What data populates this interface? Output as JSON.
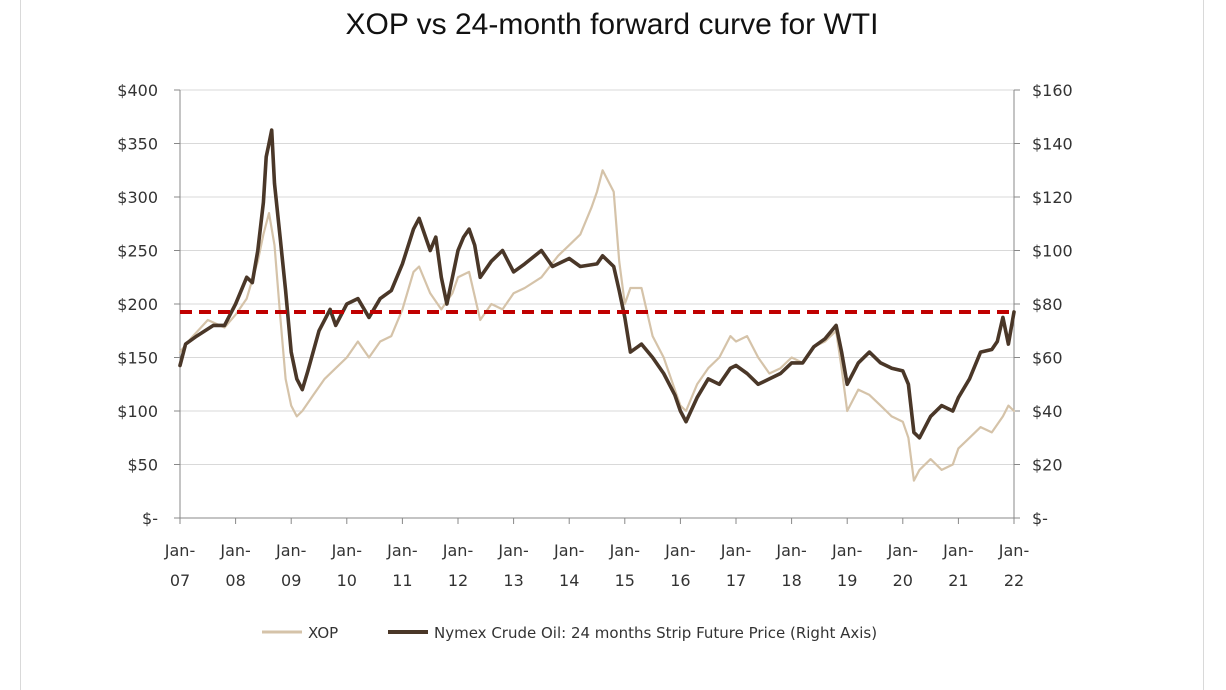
{
  "chart_data": {
    "type": "line",
    "title": "XOP vs 24-month forward curve for WTI",
    "x_ticks": [
      "Jan-07",
      "Jan-08",
      "Jan-09",
      "Jan-10",
      "Jan-11",
      "Jan-12",
      "Jan-13",
      "Jan-14",
      "Jan-15",
      "Jan-16",
      "Jan-17",
      "Jan-18",
      "Jan-19",
      "Jan-20",
      "Jan-21",
      "Jan-22"
    ],
    "x_ticks_lines": [
      [
        "Jan-",
        "07"
      ],
      [
        "Jan-",
        "08"
      ],
      [
        "Jan-",
        "09"
      ],
      [
        "Jan-",
        "10"
      ],
      [
        "Jan-",
        "11"
      ],
      [
        "Jan-",
        "12"
      ],
      [
        "Jan-",
        "13"
      ],
      [
        "Jan-",
        "14"
      ],
      [
        "Jan-",
        "15"
      ],
      [
        "Jan-",
        "16"
      ],
      [
        "Jan-",
        "17"
      ],
      [
        "Jan-",
        "18"
      ],
      [
        "Jan-",
        "19"
      ],
      [
        "Jan-",
        "20"
      ],
      [
        "Jan-",
        "21"
      ],
      [
        "Jan-",
        "22"
      ]
    ],
    "y_left": {
      "ticks": [
        "$-",
        "$50",
        "$100",
        "$150",
        "$200",
        "$250",
        "$300",
        "$350",
        "$400"
      ],
      "lim": [
        0,
        400
      ]
    },
    "y_right": {
      "ticks": [
        "$-",
        "$20",
        "$40",
        "$60",
        "$80",
        "$100",
        "$120",
        "$140",
        "$160"
      ],
      "lim": [
        0,
        160
      ]
    },
    "reference_line": {
      "axis": "right",
      "value": 77,
      "color": "#c00000",
      "style": "dashed"
    },
    "legend_position": "bottom",
    "series": [
      {
        "name": "XOP",
        "axis": "left",
        "color": "#d5c3a9",
        "points": [
          [
            2007.0,
            155
          ],
          [
            2007.2,
            168
          ],
          [
            2007.5,
            185
          ],
          [
            2007.8,
            178
          ],
          [
            2008.0,
            190
          ],
          [
            2008.2,
            205
          ],
          [
            2008.4,
            240
          ],
          [
            2008.5,
            265
          ],
          [
            2008.6,
            285
          ],
          [
            2008.7,
            255
          ],
          [
            2008.8,
            190
          ],
          [
            2008.9,
            130
          ],
          [
            2009.0,
            105
          ],
          [
            2009.1,
            95
          ],
          [
            2009.2,
            100
          ],
          [
            2009.4,
            115
          ],
          [
            2009.6,
            130
          ],
          [
            2009.8,
            140
          ],
          [
            2010.0,
            150
          ],
          [
            2010.2,
            165
          ],
          [
            2010.4,
            150
          ],
          [
            2010.6,
            165
          ],
          [
            2010.8,
            170
          ],
          [
            2011.0,
            195
          ],
          [
            2011.2,
            230
          ],
          [
            2011.3,
            235
          ],
          [
            2011.5,
            210
          ],
          [
            2011.7,
            195
          ],
          [
            2011.9,
            210
          ],
          [
            2012.0,
            225
          ],
          [
            2012.2,
            230
          ],
          [
            2012.4,
            185
          ],
          [
            2012.6,
            200
          ],
          [
            2012.8,
            195
          ],
          [
            2013.0,
            210
          ],
          [
            2013.2,
            215
          ],
          [
            2013.5,
            225
          ],
          [
            2013.8,
            245
          ],
          [
            2014.0,
            255
          ],
          [
            2014.2,
            265
          ],
          [
            2014.4,
            290
          ],
          [
            2014.5,
            305
          ],
          [
            2014.6,
            325
          ],
          [
            2014.7,
            315
          ],
          [
            2014.8,
            305
          ],
          [
            2014.9,
            240
          ],
          [
            2015.0,
            200
          ],
          [
            2015.1,
            215
          ],
          [
            2015.3,
            215
          ],
          [
            2015.5,
            170
          ],
          [
            2015.7,
            150
          ],
          [
            2015.9,
            120
          ],
          [
            2016.0,
            105
          ],
          [
            2016.1,
            100
          ],
          [
            2016.3,
            125
          ],
          [
            2016.5,
            140
          ],
          [
            2016.7,
            150
          ],
          [
            2016.9,
            170
          ],
          [
            2017.0,
            165
          ],
          [
            2017.2,
            170
          ],
          [
            2017.4,
            150
          ],
          [
            2017.6,
            135
          ],
          [
            2017.8,
            140
          ],
          [
            2018.0,
            150
          ],
          [
            2018.2,
            145
          ],
          [
            2018.4,
            160
          ],
          [
            2018.6,
            165
          ],
          [
            2018.8,
            175
          ],
          [
            2018.9,
            140
          ],
          [
            2019.0,
            100
          ],
          [
            2019.2,
            120
          ],
          [
            2019.4,
            115
          ],
          [
            2019.6,
            105
          ],
          [
            2019.8,
            95
          ],
          [
            2020.0,
            90
          ],
          [
            2020.1,
            75
          ],
          [
            2020.2,
            35
          ],
          [
            2020.3,
            45
          ],
          [
            2020.5,
            55
          ],
          [
            2020.7,
            45
          ],
          [
            2020.9,
            50
          ],
          [
            2021.0,
            65
          ],
          [
            2021.2,
            75
          ],
          [
            2021.4,
            85
          ],
          [
            2021.6,
            80
          ],
          [
            2021.8,
            95
          ],
          [
            2021.9,
            105
          ],
          [
            2022.0,
            100
          ]
        ]
      },
      {
        "name": "Nymex Crude Oil: 24 months Strip Future Price (Right Axis)",
        "axis": "right",
        "color": "#4a3728",
        "points": [
          [
            2007.0,
            57
          ],
          [
            2007.1,
            65
          ],
          [
            2007.3,
            68
          ],
          [
            2007.6,
            72
          ],
          [
            2007.8,
            72
          ],
          [
            2008.0,
            80
          ],
          [
            2008.2,
            90
          ],
          [
            2008.3,
            88
          ],
          [
            2008.4,
            100
          ],
          [
            2008.5,
            118
          ],
          [
            2008.55,
            135
          ],
          [
            2008.6,
            140
          ],
          [
            2008.65,
            145
          ],
          [
            2008.7,
            125
          ],
          [
            2008.8,
            105
          ],
          [
            2008.9,
            85
          ],
          [
            2009.0,
            62
          ],
          [
            2009.1,
            52
          ],
          [
            2009.2,
            48
          ],
          [
            2009.3,
            55
          ],
          [
            2009.5,
            70
          ],
          [
            2009.7,
            78
          ],
          [
            2009.8,
            72
          ],
          [
            2010.0,
            80
          ],
          [
            2010.2,
            82
          ],
          [
            2010.4,
            75
          ],
          [
            2010.6,
            82
          ],
          [
            2010.8,
            85
          ],
          [
            2011.0,
            95
          ],
          [
            2011.2,
            108
          ],
          [
            2011.3,
            112
          ],
          [
            2011.5,
            100
          ],
          [
            2011.6,
            105
          ],
          [
            2011.7,
            90
          ],
          [
            2011.8,
            80
          ],
          [
            2012.0,
            100
          ],
          [
            2012.1,
            105
          ],
          [
            2012.2,
            108
          ],
          [
            2012.3,
            102
          ],
          [
            2012.4,
            90
          ],
          [
            2012.6,
            96
          ],
          [
            2012.8,
            100
          ],
          [
            2013.0,
            92
          ],
          [
            2013.2,
            95
          ],
          [
            2013.5,
            100
          ],
          [
            2013.7,
            94
          ],
          [
            2014.0,
            97
          ],
          [
            2014.2,
            94
          ],
          [
            2014.5,
            95
          ],
          [
            2014.6,
            98
          ],
          [
            2014.8,
            94
          ],
          [
            2014.9,
            85
          ],
          [
            2015.0,
            75
          ],
          [
            2015.1,
            62
          ],
          [
            2015.3,
            65
          ],
          [
            2015.5,
            60
          ],
          [
            2015.7,
            54
          ],
          [
            2015.9,
            46
          ],
          [
            2016.0,
            40
          ],
          [
            2016.1,
            36
          ],
          [
            2016.3,
            45
          ],
          [
            2016.5,
            52
          ],
          [
            2016.7,
            50
          ],
          [
            2016.9,
            56
          ],
          [
            2017.0,
            57
          ],
          [
            2017.2,
            54
          ],
          [
            2017.4,
            50
          ],
          [
            2017.6,
            52
          ],
          [
            2017.8,
            54
          ],
          [
            2018.0,
            58
          ],
          [
            2018.2,
            58
          ],
          [
            2018.4,
            64
          ],
          [
            2018.6,
            67
          ],
          [
            2018.8,
            72
          ],
          [
            2018.9,
            62
          ],
          [
            2019.0,
            50
          ],
          [
            2019.2,
            58
          ],
          [
            2019.4,
            62
          ],
          [
            2019.6,
            58
          ],
          [
            2019.8,
            56
          ],
          [
            2020.0,
            55
          ],
          [
            2020.1,
            50
          ],
          [
            2020.2,
            32
          ],
          [
            2020.3,
            30
          ],
          [
            2020.5,
            38
          ],
          [
            2020.7,
            42
          ],
          [
            2020.9,
            40
          ],
          [
            2021.0,
            45
          ],
          [
            2021.2,
            52
          ],
          [
            2021.4,
            62
          ],
          [
            2021.6,
            63
          ],
          [
            2021.7,
            66
          ],
          [
            2021.8,
            75
          ],
          [
            2021.9,
            65
          ],
          [
            2022.0,
            77
          ]
        ]
      }
    ]
  }
}
